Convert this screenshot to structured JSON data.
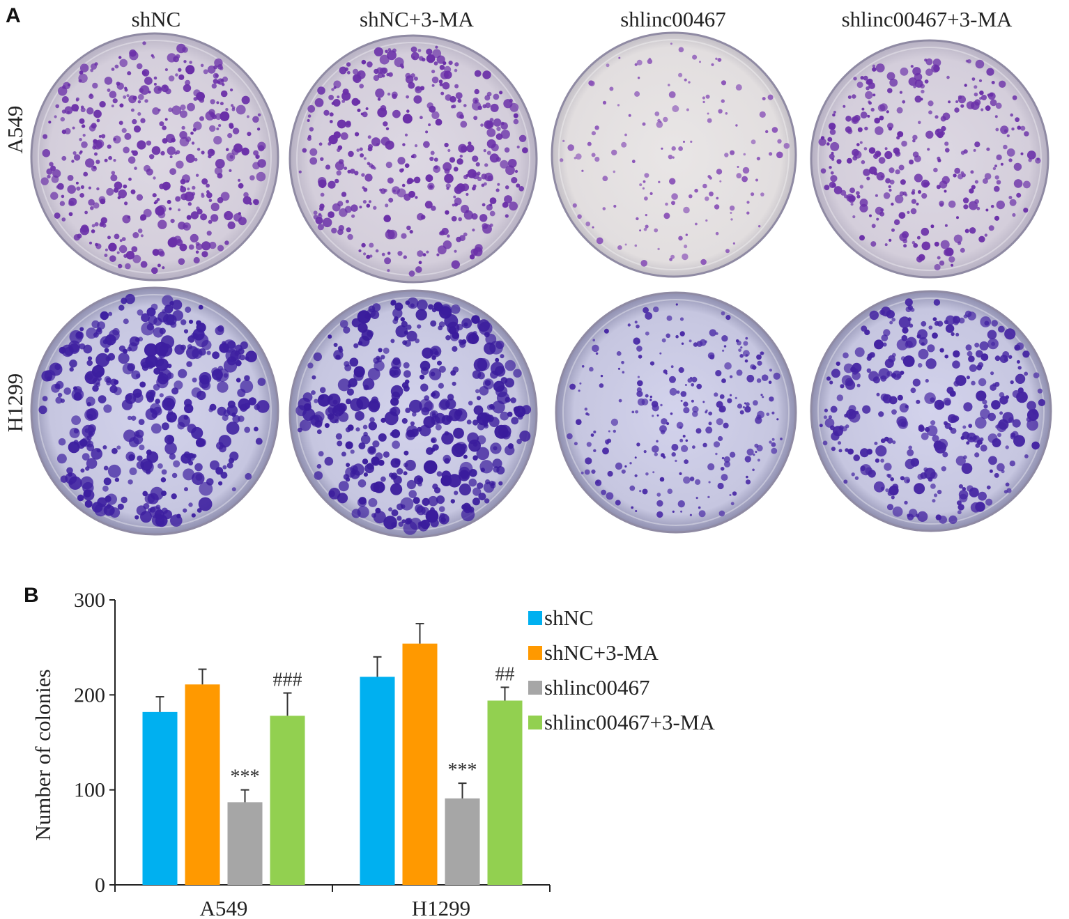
{
  "panelA": {
    "letter": "A",
    "columns": [
      "shNC",
      "shNC+3-MA",
      "shlinc00467",
      "shlinc00467+3-MA"
    ],
    "rows": [
      "A549",
      "H1299"
    ]
  },
  "panelB": {
    "letter": "B"
  },
  "chart_data": {
    "type": "bar",
    "categories": [
      "A549",
      "H1299"
    ],
    "series": [
      {
        "name": "shNC",
        "values": [
          182,
          219
        ],
        "errors": [
          16,
          21
        ],
        "color": "#00b0f0"
      },
      {
        "name": "shNC+3-MA",
        "values": [
          211,
          254
        ],
        "errors": [
          16,
          21
        ],
        "color": "#ff9900"
      },
      {
        "name": "shlinc00467",
        "values": [
          87,
          91
        ],
        "errors": [
          13,
          16
        ],
        "color": "#a6a6a6"
      },
      {
        "name": "shlinc00467+3-MA",
        "values": [
          178,
          194
        ],
        "errors": [
          24,
          14
        ],
        "color": "#92d050"
      }
    ],
    "annotations": [
      {
        "category": "A549",
        "series": "shlinc00467",
        "text": "***"
      },
      {
        "category": "A549",
        "series": "shlinc00467+3-MA",
        "text": "###"
      },
      {
        "category": "H1299",
        "series": "shlinc00467",
        "text": "***"
      },
      {
        "category": "H1299",
        "series": "shlinc00467+3-MA",
        "text": "##"
      }
    ],
    "ylabel": "Number of colonies",
    "ylim": [
      0,
      300
    ],
    "yticks": [
      0,
      100,
      200,
      300
    ],
    "legend_position": "right"
  }
}
